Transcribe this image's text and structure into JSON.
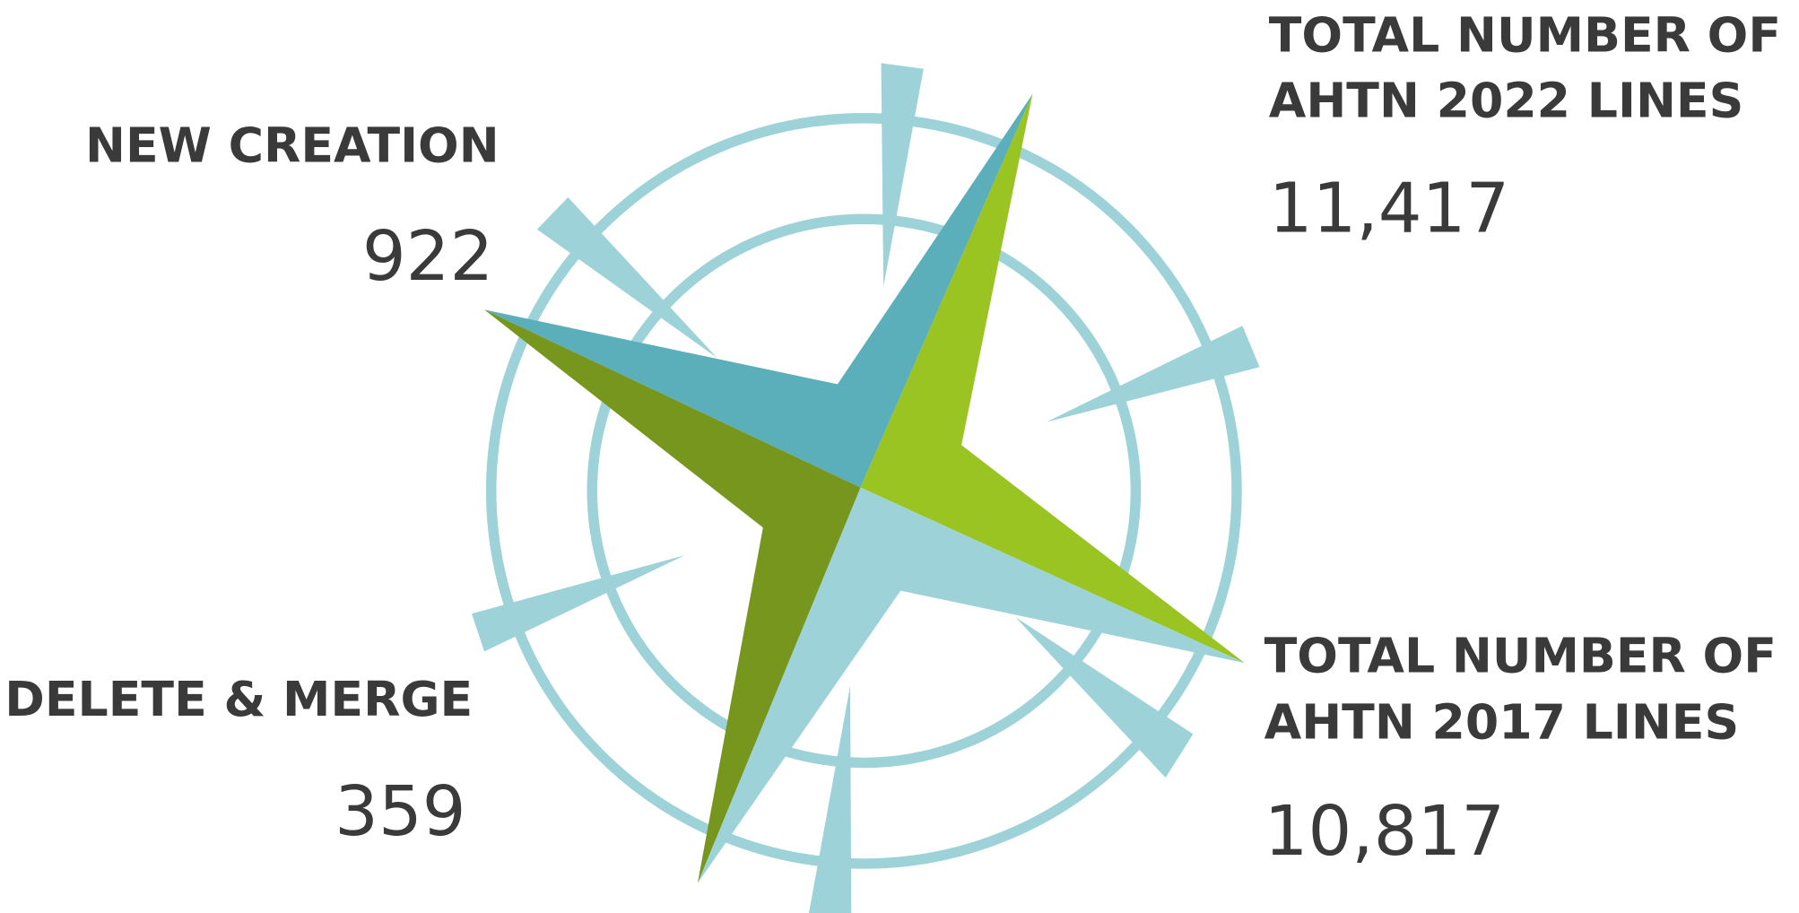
{
  "items": [
    {
      "label_lines": [
        "NEW CREATION"
      ],
      "value": "922"
    },
    {
      "label_lines": [
        "TOTAL NUMBER OF",
        "AHTN 2022 LINES"
      ],
      "value": "11,417"
    },
    {
      "label_lines": [
        "DELETE & MERGE"
      ],
      "value": "359"
    },
    {
      "label_lines": [
        "TOTAL NUMBER OF",
        "AHTN 2017 LINES"
      ],
      "value": "10,817"
    }
  ]
}
